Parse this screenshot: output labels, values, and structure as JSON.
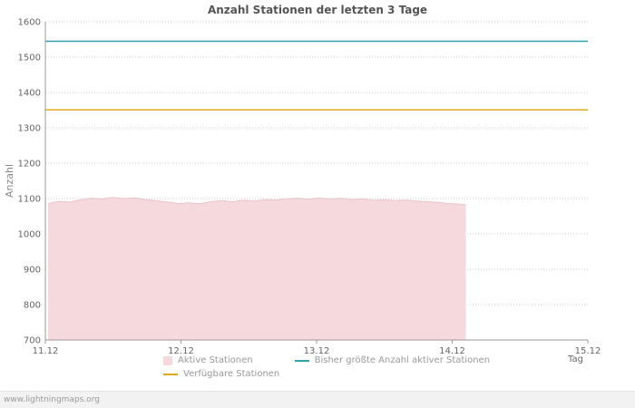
{
  "watermark": "www.lightningmaps.org",
  "chart_data": {
    "type": "area",
    "title": "Anzahl Stationen der letzten 3 Tage",
    "xlabel": "Tag",
    "ylabel": "Anzahl",
    "ylim": [
      700,
      1600
    ],
    "ytick_interval": 100,
    "x_ticks": [
      "11.12",
      "12.12",
      "13.12",
      "14.12",
      "15.12"
    ],
    "grid": true,
    "legend_position": "bottom",
    "colors": {
      "grid": "#cccccc",
      "axis": "#999999",
      "tick_text": "#666666"
    },
    "series": [
      {
        "name": "Aktive Stationen",
        "type": "area",
        "color": "#f5d9dd",
        "edge_color": "#eac3ca",
        "x": [
          0.02,
          0.1,
          0.18,
          0.26,
          0.34,
          0.42,
          0.5,
          0.58,
          0.66,
          0.74,
          0.82,
          0.9,
          0.98,
          1.06,
          1.14,
          1.22,
          1.3,
          1.38,
          1.46,
          1.54,
          1.62,
          1.7,
          1.78,
          1.86,
          1.94,
          2.02,
          2.1,
          2.18,
          2.26,
          2.34,
          2.42,
          2.5,
          2.58,
          2.66,
          2.74,
          2.82,
          2.9,
          2.98,
          3.06,
          3.1
        ],
        "values": [
          1086,
          1092,
          1090,
          1097,
          1101,
          1099,
          1103,
          1100,
          1102,
          1097,
          1094,
          1090,
          1086,
          1088,
          1085,
          1091,
          1094,
          1091,
          1095,
          1093,
          1097,
          1096,
          1099,
          1101,
          1098,
          1102,
          1099,
          1101,
          1097,
          1099,
          1095,
          1097,
          1094,
          1096,
          1093,
          1091,
          1089,
          1086,
          1084,
          1082
        ]
      },
      {
        "name": "Bisher größte Anzahl aktiver Stationen",
        "type": "line",
        "color": "#2fa4ad",
        "value": 1545
      },
      {
        "name": "Verfügbare Stationen",
        "type": "line",
        "color": "#dfa918",
        "value": 1351
      }
    ]
  }
}
